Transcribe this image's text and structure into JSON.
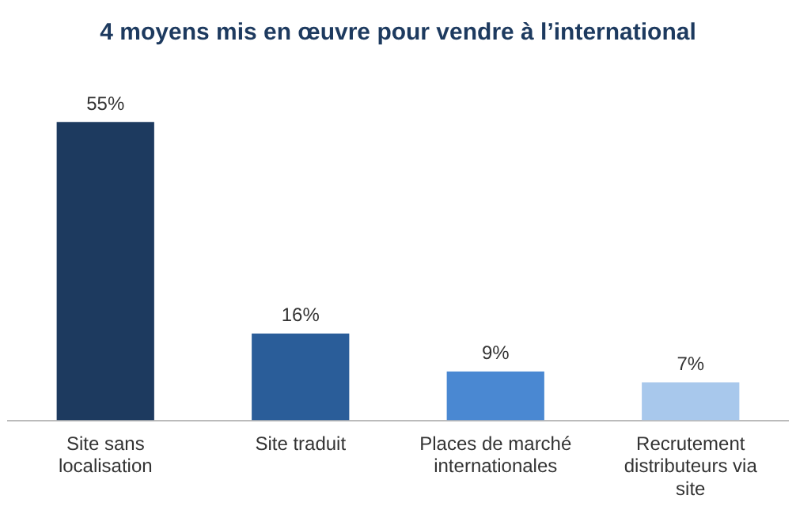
{
  "chart_data": {
    "type": "bar",
    "title": "4 moyens mis en œuvre pour vendre à l’international",
    "categories": [
      "Site sans localisation",
      "Site traduit",
      "Places de marché internationales",
      "Recrutement distributeurs via site"
    ],
    "values": [
      55,
      16,
      9,
      7
    ],
    "colors": [
      "#1d3a5f",
      "#2a5d99",
      "#4a88d2",
      "#a8c8ec"
    ],
    "value_labels": [
      "55%",
      "16%",
      "9%",
      "7%"
    ],
    "grid": false,
    "legend": false
  }
}
